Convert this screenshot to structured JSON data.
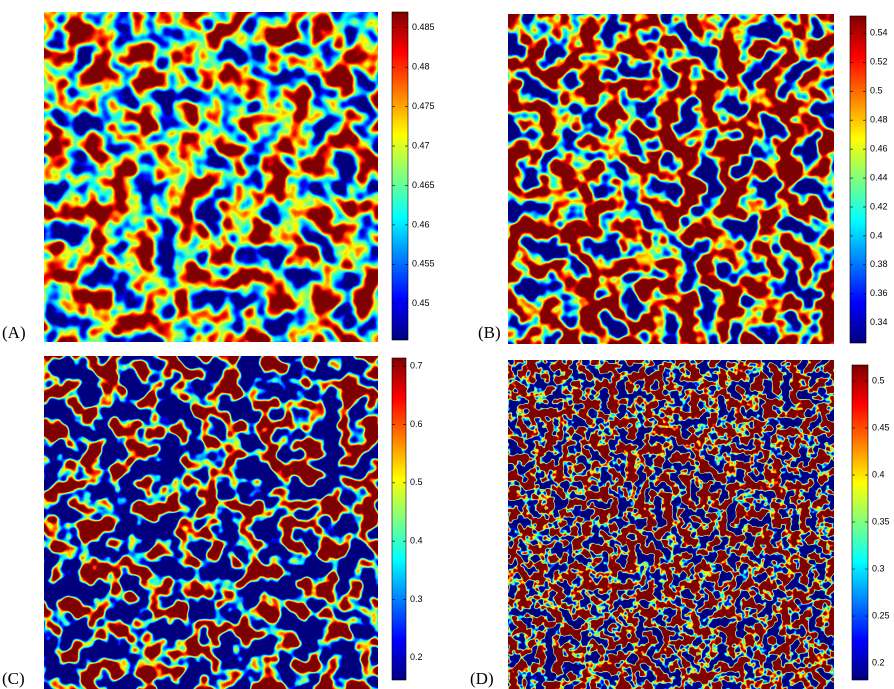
{
  "chart_data": [
    {
      "type": "heatmap",
      "label": "(A)",
      "clim": [
        0.4454,
        0.487
      ],
      "ticks": [
        0.45,
        0.455,
        0.46,
        0.465,
        0.47,
        0.475,
        0.48,
        0.485
      ]
    },
    {
      "type": "heatmap",
      "label": "(B)",
      "clim": [
        0.326,
        0.552
      ],
      "ticks": [
        0.34,
        0.36,
        0.38,
        0.4,
        0.42,
        0.44,
        0.46,
        0.48,
        0.5,
        0.52,
        0.54
      ]
    },
    {
      "type": "heatmap",
      "label": "(C)",
      "clim": [
        0.162,
        0.714
      ],
      "ticks": [
        0.2,
        0.3,
        0.4,
        0.5,
        0.6,
        0.7
      ]
    },
    {
      "type": "heatmap",
      "label": "(D)",
      "clim": [
        0.182,
        0.517
      ],
      "ticks": [
        0.2,
        0.25,
        0.3,
        0.35,
        0.4,
        0.45,
        0.5
      ]
    }
  ]
}
